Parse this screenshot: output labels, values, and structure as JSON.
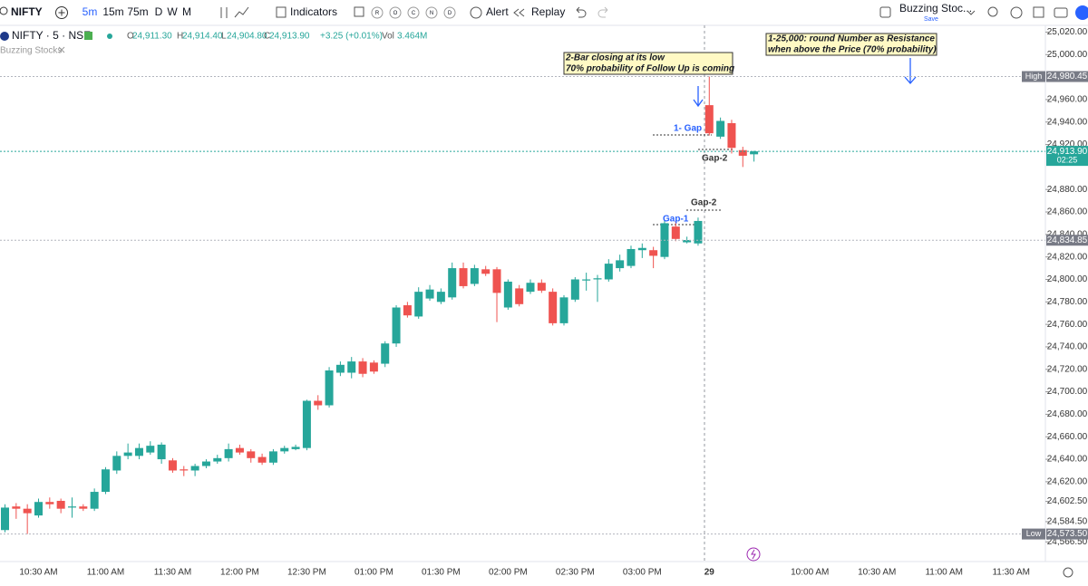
{
  "toolbar": {
    "symbol": "NIFTY",
    "intervals": [
      "5m",
      "15m",
      "75m",
      "D",
      "W",
      "M"
    ],
    "indicators": "Indicators",
    "badges": [
      "R",
      "O",
      "C",
      "N",
      "D"
    ],
    "alert": "Alert",
    "replay": "Replay",
    "layout_name": "Buzzing Stoc...",
    "layout_save": "Save"
  },
  "legend": {
    "title": "NIFTY · 5 · NSE",
    "fields": [
      {
        "key": "O",
        "value": "24,911.30"
      },
      {
        "key": "H",
        "value": "24,914.40"
      },
      {
        "key": "L",
        "value": "24,904.80"
      },
      {
        "key": "C",
        "value": "24,913.90"
      }
    ],
    "change": "+3.25 (+0.01%)",
    "volume_key": "Vol",
    "volume": "3.464M",
    "study": "Buzzing Stocks"
  },
  "chart_data": {
    "type": "candlestick",
    "categories": [
      null,
      null,
      null,
      "10:30 AM",
      null,
      null,
      null,
      null,
      null,
      "11:00 AM",
      null,
      null,
      null,
      null,
      null,
      "11:30 AM",
      null,
      null,
      null,
      null,
      null,
      "12:00 PM",
      null,
      null,
      null,
      null,
      null,
      "12:30 PM",
      null,
      null,
      null,
      null,
      null,
      "01:00 PM",
      null,
      null,
      null,
      null,
      null,
      "01:30 PM",
      null,
      null,
      null,
      null,
      null,
      "02:00 PM",
      null,
      null,
      null,
      null,
      null,
      "02:30 PM",
      null,
      null,
      null,
      null,
      null,
      "03:00 PM",
      null,
      null,
      null,
      null,
      null,
      "29",
      null,
      null,
      null,
      null,
      null,
      null,
      null,
      null,
      "10:00 AM",
      null,
      null,
      null,
      null,
      null,
      "10:30 AM",
      null,
      null,
      null,
      null,
      null,
      "11:00 AM",
      null,
      null,
      null,
      null,
      null,
      "11:30 AM",
      null,
      null
    ],
    "open": [
      24577,
      24598,
      24596,
      24590,
      24602,
      24603,
      24597,
      24598,
      24596,
      24611,
      24630,
      24643,
      24643,
      24646,
      24640,
      24639,
      24631,
      24630,
      24634,
      24638,
      24641,
      24650,
      24647,
      24642,
      24637,
      24647,
      24649,
      24650,
      24692,
      24688,
      24717,
      24717,
      24727,
      24726,
      24725,
      24743,
      24777,
      24767,
      24783,
      24780,
      24784,
      24810,
      24796,
      24809,
      24809,
      24775,
      24792,
      24789,
      24797,
      24789,
      24761,
      24782,
      24799,
      24800,
      24800,
      24810,
      24812,
      24826,
      24826,
      24820,
      24847,
      24833,
      24832,
      24955,
      24927,
      24939,
      24915,
      24911.3,
      null,
      null,
      null,
      null,
      null,
      null,
      null,
      null,
      null,
      null,
      null,
      null,
      null,
      null,
      null,
      null,
      null,
      null,
      null,
      null,
      null,
      null,
      null,
      null,
      null
    ],
    "high": [
      24600,
      24601,
      24600,
      24605,
      24606,
      24605,
      24606,
      24600,
      24614,
      24633,
      24647,
      24654,
      24654,
      24656,
      24655,
      24641,
      24634,
      24636,
      24640,
      24644,
      24654,
      24653,
      24649,
      24645,
      24649,
      24652,
      24653,
      24693,
      24697,
      24722,
      24727,
      24731,
      24730,
      24728,
      24745,
      24777,
      24780,
      24793,
      24795,
      24792,
      24815,
      24815,
      24813,
      24812,
      24811,
      24800,
      24795,
      24800,
      24800,
      24792,
      24786,
      24802,
      24806,
      24804,
      24818,
      24822,
      24830,
      24832,
      24829,
      24852,
      24852,
      24838,
      24855,
      24980.45,
      24944,
      24942,
      24918,
      24914.4,
      null,
      null,
      null,
      null,
      null,
      null,
      null,
      null,
      null,
      null,
      null,
      null,
      null,
      null,
      null,
      null,
      null,
      null,
      null,
      null,
      null,
      null,
      null,
      null,
      null
    ],
    "low": [
      24575,
      24587,
      24573.5,
      24588,
      24596,
      24592,
      24588,
      24594,
      24594,
      24609,
      24627,
      24640,
      24640,
      24644,
      24636,
      24628,
      24625,
      24625,
      24632,
      24636,
      24638,
      24644,
      24637,
      24635,
      24635,
      24645,
      24648,
      24648,
      24684,
      24686,
      24714,
      24712,
      24713,
      24716,
      24722,
      24740,
      24766,
      24765,
      24781,
      24778,
      24782,
      24792,
      24794,
      24803,
      24762,
      24773,
      24776,
      24787,
      24788,
      24759,
      24759,
      24780,
      24790,
      24780,
      24798,
      24807,
      24810,
      24819,
      24810,
      24818,
      24834,
      24832,
      24830,
      24928,
      24925,
      24912,
      24900,
      24904.8,
      null,
      null,
      null,
      null,
      null,
      null,
      null,
      null,
      null,
      null,
      null,
      null,
      null,
      null,
      null,
      null,
      null,
      null,
      null,
      null,
      null,
      null,
      null,
      null,
      null
    ],
    "close": [
      24597,
      24596,
      24592,
      24602,
      24600,
      24596,
      24598,
      24596,
      24611,
      24631,
      24643,
      24646,
      24650,
      24652,
      24653,
      24630,
      24630,
      24634,
      24638,
      24641,
      24649,
      24646,
      24641,
      24637,
      24647,
      24650,
      24651,
      24692,
      24688,
      24719,
      24724,
      24727,
      24716,
      24718,
      24743,
      24775,
      24768,
      24789,
      24791,
      24789,
      24810,
      24794,
      24810,
      24805,
      24788,
      24798,
      24778,
      24797,
      24790,
      24761,
      24784,
      24800,
      24800,
      24801,
      24814,
      24817,
      24827,
      24828,
      24821,
      24850,
      24836,
      24835,
      24852,
      24930,
      24941,
      24917,
      24910,
      24913.9,
      null,
      null,
      null,
      null,
      null,
      null,
      null,
      null,
      null,
      null,
      null,
      null,
      null,
      null,
      null,
      null,
      null,
      null,
      null,
      null,
      null,
      null,
      null,
      null,
      null
    ],
    "up_color": "#26a69a",
    "down_color": "#ef5350",
    "ylim": [
      24549,
      25026
    ],
    "yticks": [
      {
        "value": 25020,
        "label": "25,020.00"
      },
      {
        "value": 25000,
        "label": "25,000.00"
      },
      {
        "value": 24960,
        "label": "24,960.00"
      },
      {
        "value": 24940,
        "label": "24,940.00"
      },
      {
        "value": 24920,
        "label": "24,920.00"
      },
      {
        "value": 24880,
        "label": "24,880.00"
      },
      {
        "value": 24860,
        "label": "24,860.00"
      },
      {
        "value": 24840,
        "label": "24,840.00"
      },
      {
        "value": 24820,
        "label": "24,820.00"
      },
      {
        "value": 24800,
        "label": "24,800.00"
      },
      {
        "value": 24780,
        "label": "24,780.00"
      },
      {
        "value": 24760,
        "label": "24,760.00"
      },
      {
        "value": 24740,
        "label": "24,740.00"
      },
      {
        "value": 24720,
        "label": "24,720.00"
      },
      {
        "value": 24700,
        "label": "24,700.00"
      },
      {
        "value": 24680,
        "label": "24,680.00"
      },
      {
        "value": 24660,
        "label": "24,660.00"
      },
      {
        "value": 24640,
        "label": "24,640.00"
      },
      {
        "value": 24620,
        "label": "24,620.00"
      },
      {
        "value": 24602.5,
        "label": "24,602.50"
      },
      {
        "value": 24584.5,
        "label": "24,584.50"
      },
      {
        "value": 24566.5,
        "label": "24,566.50"
      }
    ],
    "grid": false,
    "price_lines": [
      {
        "name": "High",
        "value": 24980.45,
        "label": "24,980.45"
      },
      {
        "value": 24913.9,
        "label": "24,913.90",
        "countdown": "02:25"
      },
      {
        "value": 24834.85,
        "label": "24,834.85"
      },
      {
        "name": "Low",
        "value": 24573.5,
        "label": "24,573.50"
      }
    ],
    "annotations": [
      {
        "lines": [
          "2-Bar closing at its low",
          "70% probability of Follow Up is coming"
        ]
      },
      {
        "lines": [
          "1-25,000: round Number as Resistance",
          "when above the Price (70% probability)"
        ]
      },
      {
        "text": "1- Gap"
      },
      {
        "text": "Gap-2"
      },
      {
        "text": "Gap-2"
      },
      {
        "text": "Gap-1"
      }
    ]
  }
}
